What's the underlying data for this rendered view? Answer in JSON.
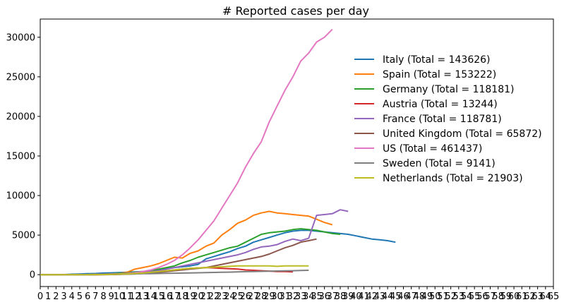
{
  "chart_data": {
    "type": "line",
    "title": "# Reported cases per day",
    "xlabel": "",
    "ylabel": "",
    "xlim": [
      0,
      65
    ],
    "ylim": [
      -1500,
      32300
    ],
    "x_ticks": [
      0,
      1,
      2,
      3,
      4,
      5,
      6,
      7,
      8,
      9,
      10,
      11,
      12,
      13,
      14,
      15,
      16,
      17,
      18,
      19,
      20,
      21,
      22,
      23,
      24,
      25,
      26,
      27,
      28,
      29,
      30,
      31,
      32,
      33,
      34,
      35,
      36,
      37,
      38,
      39,
      40,
      41,
      42,
      43,
      44,
      45,
      46,
      47,
      48,
      49,
      50,
      51,
      52,
      53,
      54,
      55,
      56,
      57,
      58,
      59,
      60,
      61,
      62,
      63,
      64,
      65
    ],
    "y_ticks": [
      0,
      5000,
      10000,
      15000,
      20000,
      25000,
      30000
    ],
    "grid": false,
    "legend_position": "right",
    "series": [
      {
        "name": "Italy (Total  = 143626)",
        "color": "#1f77b4",
        "values": [
          0,
          0,
          10,
          20,
          60,
          90,
          120,
          150,
          200,
          230,
          270,
          300,
          350,
          400,
          500,
          600,
          750,
          900,
          1000,
          1100,
          1300,
          2000,
          2300,
          2600,
          2900,
          3300,
          3600,
          4100,
          4400,
          4700,
          5000,
          5300,
          5500,
          5600,
          5600,
          5500,
          5400,
          5300,
          5200,
          5100,
          4900,
          4700,
          4500,
          4400,
          4300,
          4100
        ]
      },
      {
        "name": "Spain (Total  = 153222)",
        "color": "#ff7f0e",
        "values": [
          0,
          0,
          0,
          0,
          0,
          10,
          20,
          40,
          60,
          100,
          150,
          300,
          700,
          900,
          1100,
          1400,
          1800,
          2200,
          2100,
          2700,
          3000,
          3600,
          4000,
          5000,
          5700,
          6500,
          6900,
          7500,
          7800,
          8000,
          7800,
          7700,
          7600,
          7500,
          7400,
          7000,
          6600,
          6300
        ]
      },
      {
        "name": "Germany (Total  = 118181)",
        "color": "#2ca02c",
        "values": [
          0,
          0,
          0,
          0,
          0,
          10,
          20,
          40,
          60,
          100,
          150,
          200,
          300,
          400,
          500,
          700,
          900,
          1100,
          1500,
          1800,
          2200,
          2500,
          2800,
          3100,
          3400,
          3600,
          4100,
          4600,
          5100,
          5300,
          5400,
          5500,
          5700,
          5800,
          5700,
          5600,
          5400,
          5200,
          5100
        ]
      },
      {
        "name": "Austria (Total  = 13244)",
        "color": "#d62728",
        "values": [
          0,
          0,
          0,
          0,
          0,
          0,
          0,
          0,
          10,
          20,
          50,
          100,
          150,
          200,
          300,
          400,
          500,
          600,
          700,
          800,
          850,
          900,
          850,
          800,
          750,
          700,
          600,
          550,
          500,
          450,
          400,
          400,
          350
        ]
      },
      {
        "name": "France (Total  = 118781)",
        "color": "#9467bd",
        "values": [
          0,
          0,
          0,
          0,
          0,
          0,
          10,
          20,
          40,
          70,
          100,
          150,
          200,
          300,
          400,
          500,
          700,
          900,
          1100,
          1300,
          1500,
          1700,
          1900,
          2100,
          2300,
          2500,
          2800,
          3200,
          3500,
          3600,
          3800,
          4200,
          4500,
          4300,
          4600,
          7500,
          7600,
          7700,
          8200,
          8000
        ]
      },
      {
        "name": "United Kingdom (Total  = 65872)",
        "color": "#8c564b",
        "values": [
          0,
          0,
          0,
          0,
          0,
          0,
          0,
          0,
          10,
          20,
          40,
          60,
          100,
          150,
          200,
          300,
          400,
          500,
          600,
          700,
          800,
          900,
          1100,
          1300,
          1500,
          1700,
          1900,
          2100,
          2300,
          2600,
          3000,
          3400,
          3700,
          4100,
          4300,
          4500
        ]
      },
      {
        "name": "US (Total  = 461437)",
        "color": "#e377c2",
        "values": [
          0,
          0,
          0,
          0,
          0,
          10,
          20,
          30,
          50,
          80,
          100,
          150,
          250,
          400,
          600,
          900,
          1300,
          1800,
          2500,
          3400,
          4400,
          5600,
          6800,
          8400,
          10000,
          11600,
          13600,
          15300,
          16800,
          19300,
          21300,
          23300,
          25000,
          27000,
          28000,
          29400,
          30000,
          31000
        ]
      },
      {
        "name": "Sweden (Total  = 9141)",
        "color": "#7f7f7f",
        "values": [
          0,
          0,
          0,
          0,
          0,
          0,
          10,
          20,
          30,
          50,
          70,
          90,
          100,
          120,
          130,
          150,
          170,
          190,
          200,
          220,
          240,
          260,
          280,
          300,
          320,
          350,
          380,
          400,
          420,
          440,
          460,
          480,
          500,
          520,
          550
        ]
      },
      {
        "name": "Netherlands (Total  = 21903)",
        "color": "#bcbd22",
        "values": [
          0,
          0,
          0,
          0,
          0,
          0,
          0,
          10,
          20,
          40,
          70,
          100,
          150,
          200,
          300,
          400,
          500,
          600,
          700,
          800,
          850,
          900,
          950,
          1000,
          1050,
          1100,
          1100,
          1100,
          1100,
          1100,
          1050,
          1100,
          1100,
          1100,
          1100
        ]
      }
    ]
  }
}
